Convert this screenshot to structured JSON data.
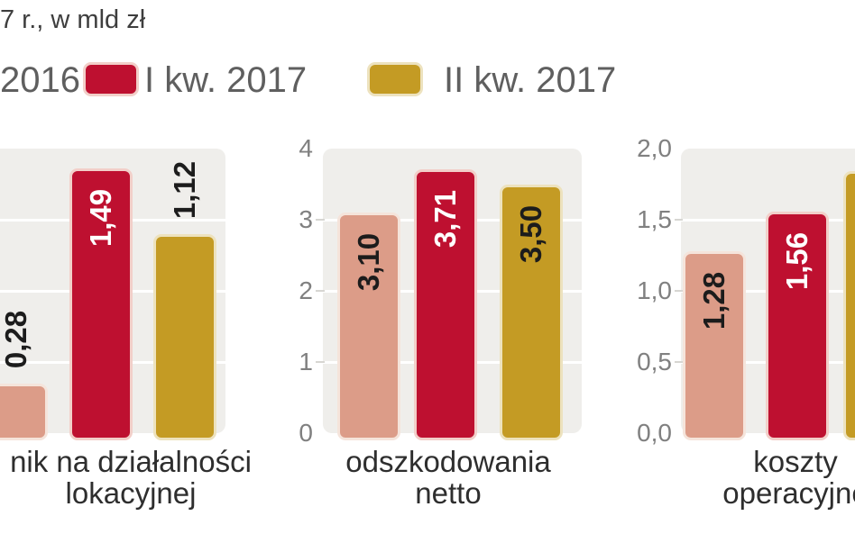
{
  "title": "7 r., w mld zł",
  "legend": {
    "items": [
      {
        "label": "2016",
        "series": "2016",
        "swatch_visible": false
      },
      {
        "label": "I kw. 2017",
        "series": "q1_2017",
        "swatch_visible": true
      },
      {
        "label": "II kw. 2017",
        "series": "q2_2017",
        "swatch_visible": true
      }
    ]
  },
  "colors": {
    "series_fill": {
      "2016": "#DC9C88",
      "q1_2017": "#BE1030",
      "q2_2017": "#C49B24"
    },
    "series_border": {
      "2016": "#F5E4DB",
      "q1_2017": "#F2CFC9",
      "q2_2017": "#EDE2BE"
    },
    "value_text": {
      "2016": "#1C1C1C",
      "q1_2017": "#FFFFFF",
      "q2_2017": "#1C1C1C"
    },
    "plot_bg": "#EFEEEB",
    "gridline": "#FFFFFF",
    "tick_stub": "#D7D6D2",
    "axis_text": "#808080",
    "category_text": "#2E2E2E",
    "title_text": "#3E3E3E",
    "legend_text": "#5F5F5F",
    "page_bg": "#FFFFFF"
  },
  "chart_data": [
    {
      "type": "bar",
      "category_label": "nik na działalności\nlokacyjnej",
      "ylim": [
        0,
        1.6
      ],
      "grid": true,
      "ytick_labels": [],
      "bars": [
        {
          "series": "2016",
          "value": 0.28,
          "label": "0,28",
          "label_position": "above",
          "label_visible": true
        },
        {
          "series": "q1_2017",
          "value": 1.49,
          "label": "1,49",
          "label_position": "inside",
          "label_visible": true
        },
        {
          "series": "q2_2017",
          "value": 1.12,
          "label": "1,12",
          "label_position": "above",
          "label_visible": true
        }
      ]
    },
    {
      "type": "bar",
      "category_label": "odszkodowania\nnetto",
      "ylim": [
        0,
        4
      ],
      "grid": true,
      "ytick_labels": [
        "0",
        "1",
        "2",
        "3",
        "4"
      ],
      "bars": [
        {
          "series": "2016",
          "value": 3.1,
          "label": "3,10",
          "label_position": "inside",
          "label_visible": true
        },
        {
          "series": "q1_2017",
          "value": 3.71,
          "label": "3,71",
          "label_position": "inside",
          "label_visible": true
        },
        {
          "series": "q2_2017",
          "value": 3.5,
          "label": "3,50",
          "label_position": "inside",
          "label_visible": true
        }
      ]
    },
    {
      "type": "bar",
      "category_label": "koszty\noperacyjne",
      "ylim": [
        0,
        2
      ],
      "grid": true,
      "ytick_labels": [
        "0,0",
        "0,5",
        "1,0",
        "1,5",
        "2,0"
      ],
      "bars": [
        {
          "series": "2016",
          "value": 1.28,
          "label": "1,28",
          "label_position": "inside",
          "label_visible": true
        },
        {
          "series": "q1_2017",
          "value": 1.56,
          "label": "1,56",
          "label_position": "inside",
          "label_visible": true
        },
        {
          "series": "q2_2017",
          "value": 1.84,
          "label": "",
          "label_position": "inside",
          "label_visible": false
        }
      ]
    }
  ]
}
